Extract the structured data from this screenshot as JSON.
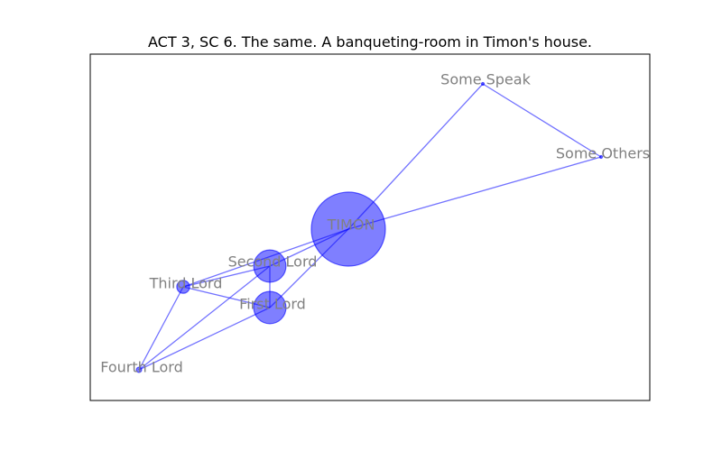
{
  "title": "ACT 3, SC 6. The same. A banqueting-room in Timon's house.",
  "colors": {
    "node": "#0000ff",
    "edge": "#0000ff",
    "label": "#808080",
    "frame": "#000000"
  },
  "nodes": [
    {
      "id": "timon",
      "label": "TIMON",
      "weight": 1.0
    },
    {
      "id": "second-lord",
      "label": "Second Lord",
      "weight": 0.19
    },
    {
      "id": "first-lord",
      "label": "First Lord",
      "weight": 0.19
    },
    {
      "id": "third-lord",
      "label": "Third Lord",
      "weight": 0.03
    },
    {
      "id": "fourth-lord",
      "label": "Fourth Lord",
      "weight": 0.005
    },
    {
      "id": "some-speak",
      "label": "Some Speak",
      "weight": 0.001
    },
    {
      "id": "some-others",
      "label": "Some Others",
      "weight": 0.001
    }
  ],
  "edges": [
    [
      "timon",
      "second-lord"
    ],
    [
      "timon",
      "first-lord"
    ],
    [
      "timon",
      "third-lord"
    ],
    [
      "timon",
      "some-speak"
    ],
    [
      "timon",
      "some-others"
    ],
    [
      "some-speak",
      "some-others"
    ],
    [
      "second-lord",
      "first-lord"
    ],
    [
      "second-lord",
      "third-lord"
    ],
    [
      "second-lord",
      "fourth-lord"
    ],
    [
      "first-lord",
      "third-lord"
    ],
    [
      "first-lord",
      "fourth-lord"
    ],
    [
      "third-lord",
      "fourth-lord"
    ]
  ]
}
